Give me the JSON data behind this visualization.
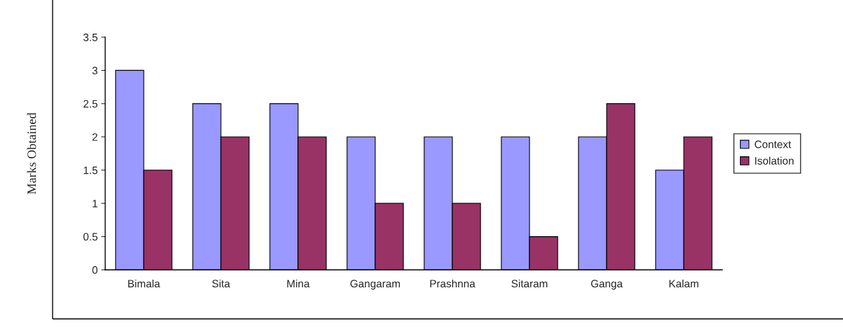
{
  "chart_data": {
    "type": "bar",
    "ylabel": "Marks Obtained",
    "categories": [
      "Bimala",
      "Sita",
      "Mina",
      "Gangaram",
      "Prashnna",
      "Sitaram",
      "Ganga",
      "Kalam"
    ],
    "series": [
      {
        "name": "Context",
        "color": "#9999ff",
        "values": [
          3,
          2.5,
          2.5,
          2,
          2,
          2,
          2,
          1.5
        ]
      },
      {
        "name": "Isolation",
        "color": "#993366",
        "values": [
          1.5,
          2,
          2,
          1,
          1,
          0.5,
          2.5,
          2
        ]
      }
    ],
    "ylim": [
      0,
      3.5
    ],
    "yticks": [
      0,
      0.5,
      1,
      1.5,
      2,
      2.5,
      3,
      3.5
    ],
    "grid": false,
    "legend": "right"
  }
}
